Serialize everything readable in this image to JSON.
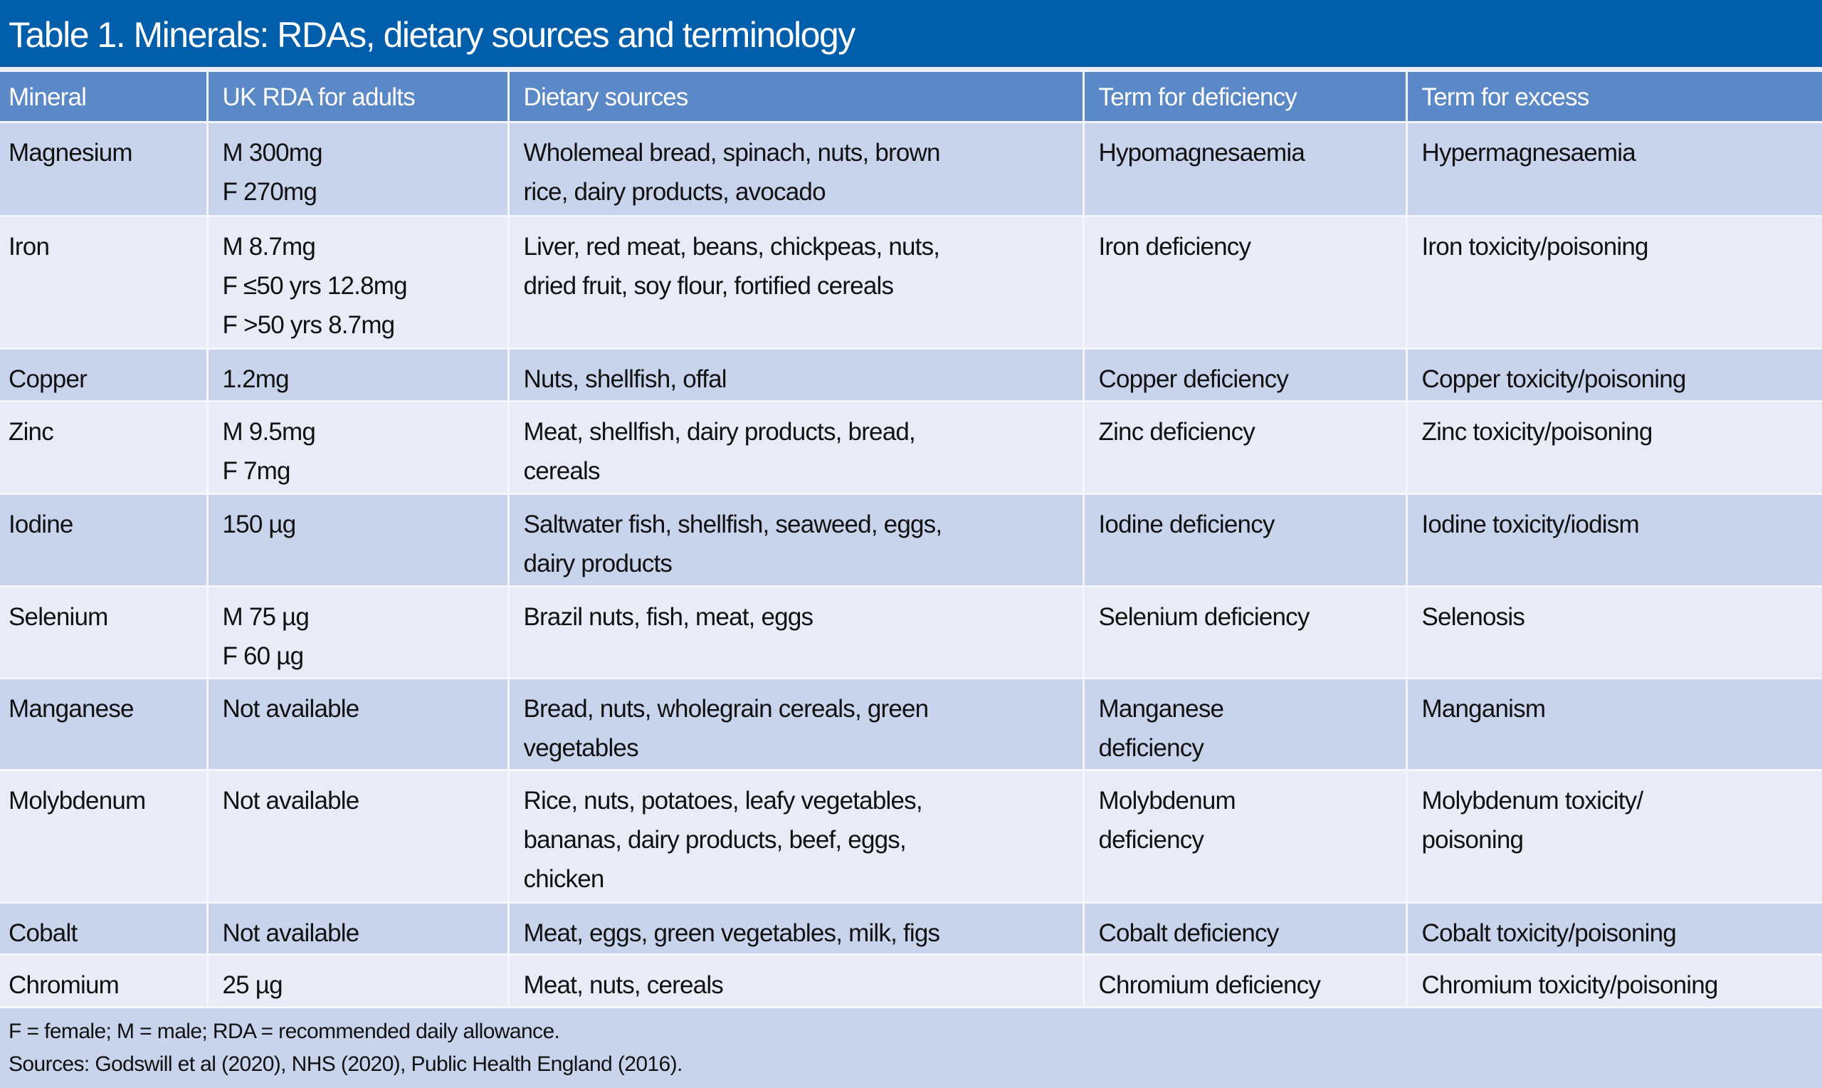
{
  "title": "Table 1. Minerals: RDAs, dietary sources and terminology",
  "columns": [
    "Mineral",
    "UK RDA for adults",
    "Dietary sources",
    "Term for deficiency",
    "Term for excess"
  ],
  "rows": [
    {
      "mineral": "Magnesium",
      "rda": [
        "M 300mg",
        "F 270mg"
      ],
      "sources": [
        "Wholemeal bread, spinach, nuts, brown",
        "rice, dairy products, avocado"
      ],
      "deficiency": [
        "Hypomagnesaemia"
      ],
      "excess": [
        "Hypermagnesaemia"
      ]
    },
    {
      "mineral": "Iron",
      "rda": [
        "M 8.7mg",
        "F ≤50 yrs 12.8mg",
        "F >50 yrs 8.7mg"
      ],
      "sources": [
        "Liver, red meat, beans, chickpeas, nuts,",
        "dried fruit, soy flour, fortified cereals"
      ],
      "deficiency": [
        "Iron deficiency"
      ],
      "excess": [
        "Iron toxicity/poisoning"
      ]
    },
    {
      "mineral": "Copper",
      "rda": [
        "1.2mg"
      ],
      "sources": [
        "Nuts, shellfish, offal"
      ],
      "deficiency": [
        "Copper deficiency"
      ],
      "excess": [
        "Copper toxicity/poisoning"
      ]
    },
    {
      "mineral": "Zinc",
      "rda": [
        "M 9.5mg",
        "F 7mg"
      ],
      "sources": [
        "Meat, shellfish, dairy products, bread,",
        "cereals"
      ],
      "deficiency": [
        "Zinc deficiency"
      ],
      "excess": [
        "Zinc toxicity/poisoning"
      ]
    },
    {
      "mineral": "Iodine",
      "rda": [
        "150 µg"
      ],
      "sources": [
        "Saltwater fish, shellfish, seaweed, eggs,",
        "dairy products"
      ],
      "deficiency": [
        "Iodine deficiency"
      ],
      "excess": [
        "Iodine toxicity/iodism"
      ]
    },
    {
      "mineral": "Selenium",
      "rda": [
        "M 75 µg",
        "F 60 µg"
      ],
      "sources": [
        "Brazil nuts, fish, meat, eggs"
      ],
      "deficiency": [
        "Selenium deficiency"
      ],
      "excess": [
        "Selenosis"
      ]
    },
    {
      "mineral": "Manganese",
      "rda": [
        "Not available"
      ],
      "sources": [
        "Bread, nuts, wholegrain cereals, green",
        "vegetables"
      ],
      "deficiency": [
        "Manganese",
        "deficiency"
      ],
      "excess": [
        "Manganism"
      ]
    },
    {
      "mineral": "Molybdenum",
      "rda": [
        "Not available"
      ],
      "sources": [
        "Rice, nuts, potatoes, leafy vegetables,",
        "bananas, dairy products, beef, eggs,",
        "chicken"
      ],
      "deficiency": [
        "Molybdenum",
        "deficiency"
      ],
      "excess": [
        "Molybdenum toxicity/",
        "poisoning"
      ]
    },
    {
      "mineral": "Cobalt",
      "rda": [
        "Not available"
      ],
      "sources": [
        "Meat, eggs, green vegetables, milk, figs"
      ],
      "deficiency": [
        "Cobalt deficiency"
      ],
      "excess": [
        "Cobalt toxicity/poisoning"
      ]
    },
    {
      "mineral": "Chromium",
      "rda": [
        "25 µg"
      ],
      "sources": [
        "Meat, nuts, cereals"
      ],
      "deficiency": [
        "Chromium deficiency"
      ],
      "excess": [
        "Chromium toxicity/poisoning"
      ]
    }
  ],
  "footnotes": [
    "F = female; M = male; RDA = recommended daily allowance.",
    "Sources: Godswill et al (2020), NHS (2020), Public Health England (2016)."
  ],
  "colors": {
    "title_bg": "#005eab",
    "header_bg": "#5b88c6",
    "row_dark": "#c8d3ec",
    "row_light": "#e9ecf7"
  }
}
